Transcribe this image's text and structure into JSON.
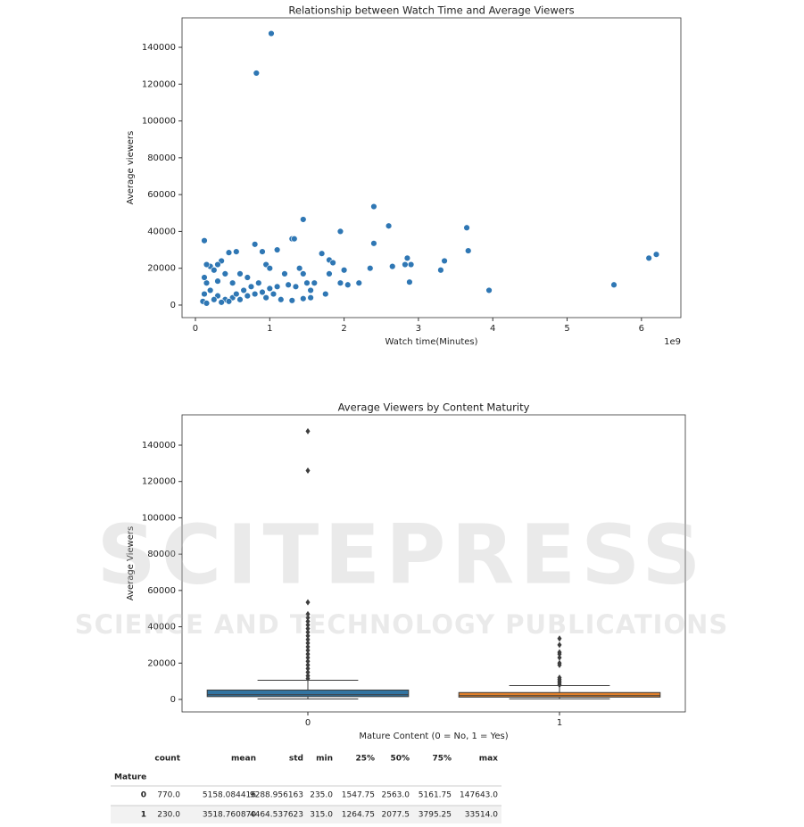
{
  "chart_data": [
    {
      "type": "scatter",
      "title": "Relationship between Watch Time and Average Viewers",
      "x_label": "Watch time(Minutes)",
      "y_label": "Average viewers",
      "x_offset_label": "1e9",
      "color": "#2f77b4",
      "x": [
        0.82,
        1.02,
        0.12,
        2.4,
        1.45,
        2.6,
        3.65,
        1.95,
        2.4,
        0.8,
        1.3,
        1.33,
        3.67,
        2.85,
        2.9,
        2.82,
        2.65,
        3.35,
        3.3,
        2.88,
        2.35,
        2.2,
        2.05,
        2.0,
        1.95,
        1.8,
        1.85,
        1.7,
        1.8,
        3.95,
        5.63,
        6.1,
        6.2,
        1.1,
        0.9,
        0.95,
        0.55,
        0.45,
        0.35,
        0.3,
        0.2,
        0.15,
        0.25,
        0.4,
        0.6,
        0.7,
        1.2,
        1.4,
        1.45,
        1.5,
        1.6,
        1.55,
        1.35,
        1.25,
        1.1,
        1.0,
        0.9,
        0.8,
        0.7,
        0.6,
        0.5,
        0.4,
        0.3,
        0.2,
        0.15,
        0.12,
        0.1,
        0.15,
        0.25,
        0.35,
        0.45,
        0.55,
        0.65,
        0.75,
        0.85,
        0.95,
        1.05,
        1.15,
        1.3,
        1.45,
        1.55,
        0.12,
        0.3,
        0.5,
        1.0,
        1.75
      ],
      "y": [
        126000,
        147500,
        35000,
        53500,
        46500,
        43000,
        42000,
        40000,
        33500,
        33000,
        36000,
        36000,
        29500,
        25500,
        22000,
        22000,
        21000,
        24000,
        19000,
        12500,
        20000,
        12000,
        11000,
        19000,
        12000,
        24500,
        23000,
        28000,
        17000,
        8000,
        11000,
        25500,
        27500,
        30000,
        29000,
        22000,
        29000,
        28500,
        24000,
        22000,
        21000,
        22000,
        19000,
        17000,
        17000,
        15000,
        17000,
        20000,
        17000,
        12000,
        12000,
        8000,
        10000,
        11000,
        10000,
        9000,
        7000,
        6000,
        5000,
        3000,
        4000,
        3000,
        5000,
        8000,
        12000,
        6000,
        2000,
        1000,
        3000,
        1500,
        2000,
        6000,
        8000,
        10000,
        12000,
        4000,
        6000,
        3000,
        2500,
        3500,
        4000,
        15000,
        13000,
        12000,
        20000,
        6000
      ],
      "xlim": [
        -0.18,
        6.53
      ],
      "xticks": [
        0,
        1,
        2,
        3,
        4,
        5,
        6
      ],
      "ylim": [
        -6800,
        156000
      ],
      "yticks": [
        0,
        20000,
        40000,
        60000,
        80000,
        100000,
        120000,
        140000
      ]
    },
    {
      "type": "box",
      "title": "Average Viewers by Content Maturity",
      "x_label": "Mature Content (0 = No, 1 = Yes)",
      "y_label": "Average Viewers",
      "categories": [
        "0",
        "1"
      ],
      "boxes": [
        {
          "color": "#3274a1",
          "whislo": 235,
          "q1": 1547.75,
          "med": 2563,
          "q3": 5161.75,
          "whishi": 10580,
          "fliers": [
            147643,
            126000,
            53500,
            47000,
            45000,
            43000,
            41000,
            39000,
            37000,
            35000,
            33000,
            31000,
            29000,
            27000,
            25000,
            23000,
            21000,
            19000,
            17000,
            15000,
            13000,
            11500
          ]
        },
        {
          "color": "#e1812c",
          "whislo": 315,
          "q1": 1264.75,
          "med": 2077.5,
          "q3": 3795.25,
          "whishi": 7590,
          "fliers": [
            33514,
            30000,
            26000,
            25000,
            23000,
            20000,
            19000,
            12000,
            11000,
            10000,
            9000,
            8000
          ]
        }
      ],
      "ylim": [
        -6880,
        156700
      ],
      "yticks": [
        0,
        20000,
        40000,
        60000,
        80000,
        100000,
        120000,
        140000
      ]
    }
  ],
  "table": {
    "columns": [
      "count",
      "mean",
      "std",
      "min",
      "25%",
      "50%",
      "75%",
      "max"
    ],
    "index_name": "Mature",
    "index": [
      "0",
      "1"
    ],
    "rows": [
      [
        "770.0",
        "5158.084416",
        "9288.956163",
        "235.0",
        "1547.75",
        "2563.0",
        "5161.75",
        "147643.0"
      ],
      [
        "230.0",
        "3518.760870",
        "4464.537623",
        "315.0",
        "1264.75",
        "2077.5",
        "3795.25",
        "33514.0"
      ]
    ]
  },
  "watermark": {
    "title": "SCITEPRESS",
    "subtitle": "SCIENCE AND TECHNOLOGY PUBLICATIONS"
  }
}
